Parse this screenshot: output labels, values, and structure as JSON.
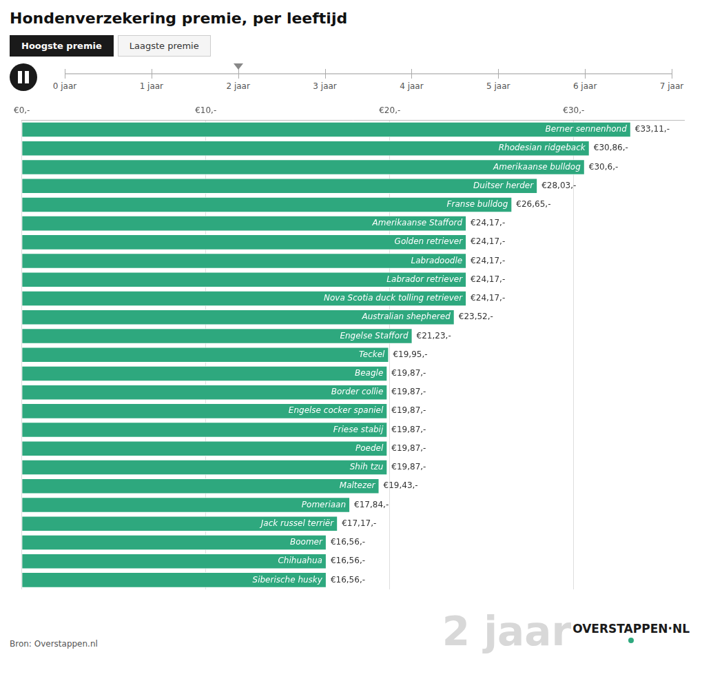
{
  "chart_data": {
    "type": "bar",
    "orientation": "horizontal",
    "title": "Hondenverzekering premie, per leeftijd",
    "categories": [
      "Berner sennenhond",
      "Rhodesian ridgeback",
      "Amerikaanse bulldog",
      "Duitser herder",
      "Franse bulldog",
      "Amerikaanse Stafford",
      "Golden retriever",
      "Labradoodle",
      "Labrador retriever",
      "Nova Scotia duck tolling retriever",
      "Australian shephered",
      "Engelse Stafford",
      "Teckel",
      "Beagle",
      "Border collie",
      "Engelse cocker spaniel",
      "Friese stabij",
      "Poedel",
      "Shih tzu",
      "Maltezer",
      "Pomeriaan",
      "Jack russel terriër",
      "Boomer",
      "Chihuahua",
      "Siberische husky"
    ],
    "values": [
      33.11,
      30.86,
      30.6,
      28.03,
      26.65,
      24.17,
      24.17,
      24.17,
      24.17,
      24.17,
      23.52,
      21.23,
      19.95,
      19.87,
      19.87,
      19.87,
      19.87,
      19.87,
      19.87,
      19.43,
      17.84,
      17.17,
      16.56,
      16.56,
      16.56
    ],
    "value_labels": [
      "€33,11,-",
      "€30,86,-",
      "€30,6,-",
      "€28,03,-",
      "€26,65,-",
      "€24,17,-",
      "€24,17,-",
      "€24,17,-",
      "€24,17,-",
      "€24,17,-",
      "€23,52,-",
      "€21,23,-",
      "€19,95,-",
      "€19,87,-",
      "€19,87,-",
      "€19,87,-",
      "€19,87,-",
      "€19,87,-",
      "€19,87,-",
      "€19,43,-",
      "€17,84,-",
      "€17,17,-",
      "€16,56,-",
      "€16,56,-",
      "€16,56,-"
    ],
    "data_labels": true,
    "color": "#2ea87e",
    "xlim": [
      0,
      36
    ],
    "xticks": [
      {
        "value": 0,
        "label": "€0,-"
      },
      {
        "value": 10,
        "label": "€10,-"
      },
      {
        "value": 20,
        "label": "€20,-"
      },
      {
        "value": 30,
        "label": "€30,-"
      }
    ],
    "grid": true,
    "tick_labels": "x",
    "annotations": [
      "Hoogste premie",
      "Laagste premie",
      "0 jaar",
      "1 jaar",
      "2 jaar",
      "3 jaar",
      "4 jaar",
      "5 jaar",
      "6 jaar",
      "7 jaar",
      "2 jaar",
      "OVERSTAPPEN·NL",
      "Bron: Overstappen.nl"
    ]
  }
}
